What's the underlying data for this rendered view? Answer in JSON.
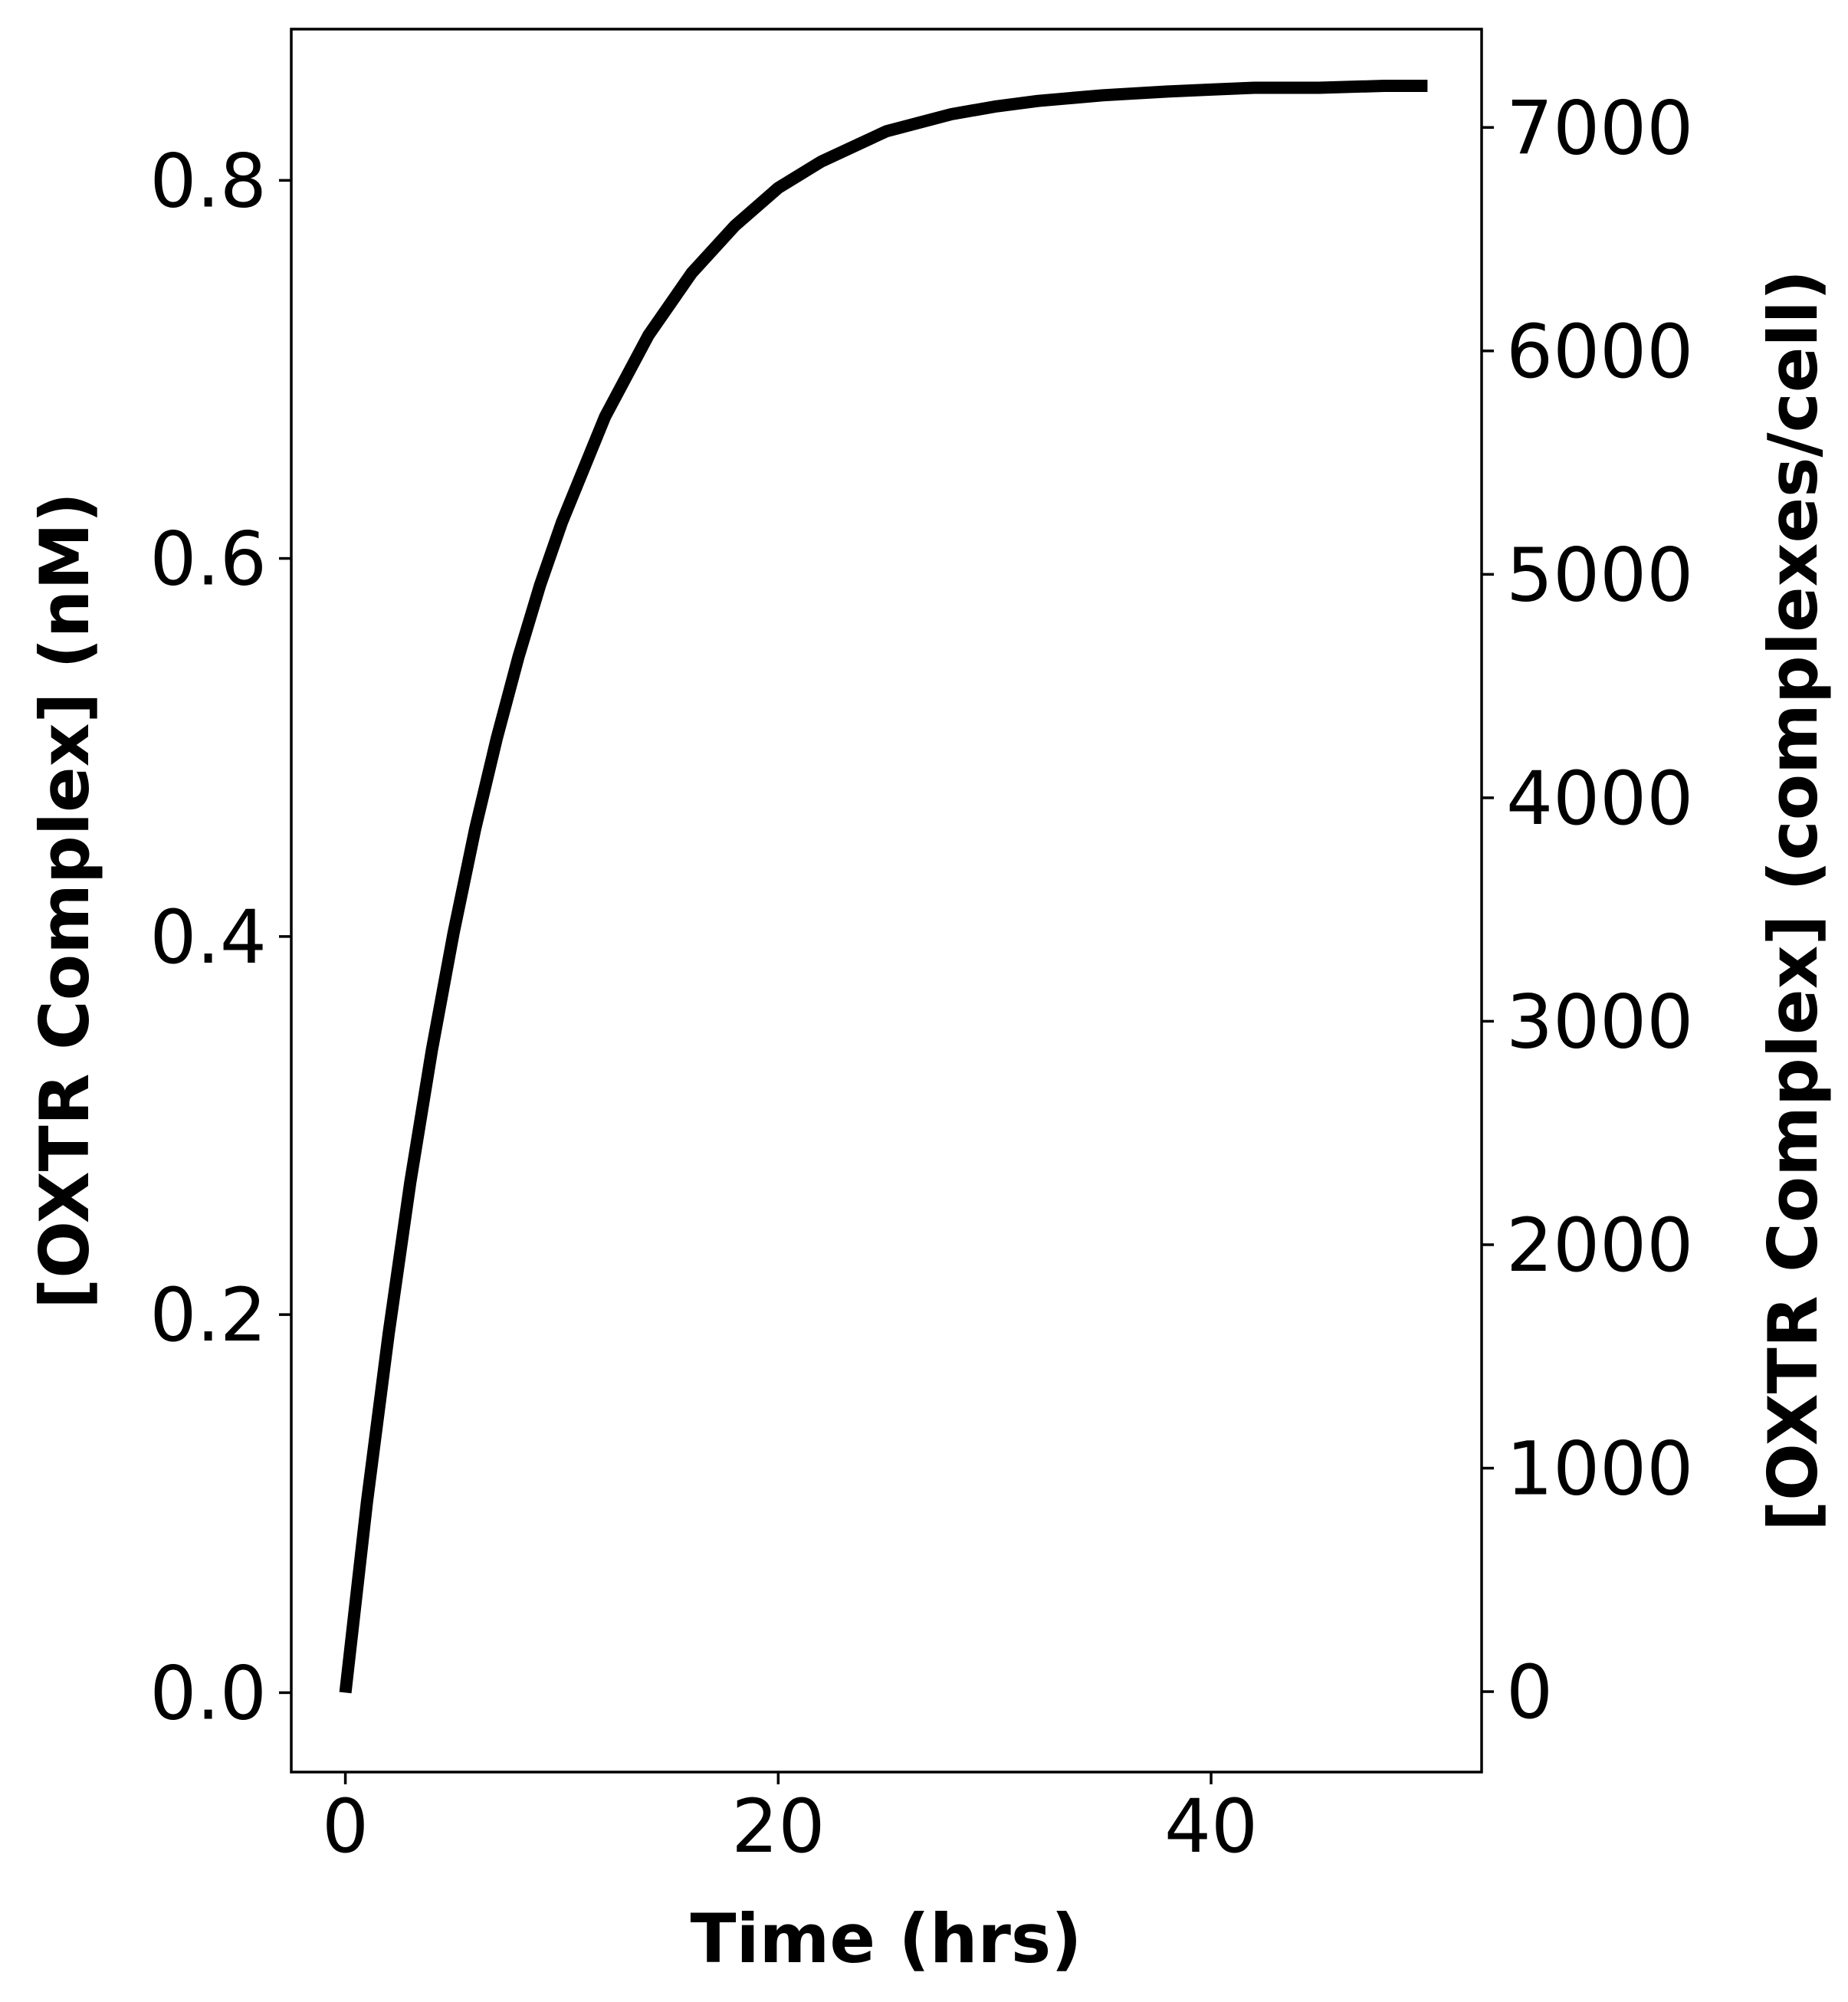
{
  "chart_data": {
    "type": "line",
    "title": "",
    "xlabel": "Time (hrs)",
    "ylabel": "[OXTR Complex] (nM)",
    "ylabel_right": "[OXTR Complex] (complexes/cell)",
    "xlim": [
      -2.5,
      52.5
    ],
    "ylim": [
      -0.042,
      0.88
    ],
    "ylim_right": [
      -360,
      7440
    ],
    "x_ticks": [
      0,
      20,
      40
    ],
    "x_tick_labels": [
      "0",
      "20",
      "40"
    ],
    "y_ticks": [
      0.0,
      0.2,
      0.4,
      0.6,
      0.8
    ],
    "y_tick_labels": [
      "0.0",
      "0.2",
      "0.4",
      "0.6",
      "0.8"
    ],
    "y_right_ticks": [
      0,
      1000,
      2000,
      3000,
      4000,
      5000,
      6000,
      7000
    ],
    "y_right_tick_labels": [
      "0",
      "1000",
      "2000",
      "3000",
      "4000",
      "5000",
      "6000",
      "7000"
    ],
    "grid": false,
    "legend": "none",
    "series": [
      {
        "color": "#000000",
        "x": [
          0,
          1,
          2,
          3,
          4,
          5,
          6,
          7,
          8,
          9,
          10,
          12,
          14,
          16,
          18,
          20,
          22,
          25,
          28,
          30,
          32,
          35,
          38,
          40,
          42,
          45,
          48,
          50
        ],
        "y": [
          0.0,
          0.101,
          0.19,
          0.27,
          0.34,
          0.402,
          0.457,
          0.505,
          0.548,
          0.586,
          0.619,
          0.675,
          0.718,
          0.751,
          0.776,
          0.796,
          0.81,
          0.826,
          0.835,
          0.839,
          0.842,
          0.845,
          0.847,
          0.848,
          0.849,
          0.849,
          0.85,
          0.85
        ]
      }
    ]
  }
}
